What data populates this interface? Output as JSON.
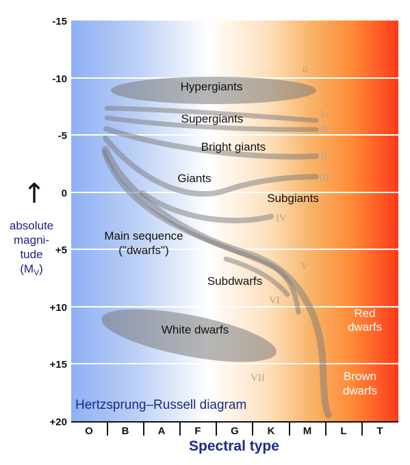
{
  "title": "Hertzsprung–Russell diagram",
  "y_axis": {
    "label_lines": [
      "absolute",
      "magni-",
      "tude"
    ],
    "label_symbol": "(M",
    "label_subscript": "V",
    "label_close": ")",
    "arrow": "↑",
    "ticks": [
      "-15",
      "-10",
      "-5",
      "0",
      "+5",
      "+10",
      "+15",
      "+20"
    ]
  },
  "x_axis": {
    "label": "Spectral type",
    "ticks": [
      "O",
      "B",
      "A",
      "F",
      "G",
      "K",
      "M",
      "L",
      "T"
    ]
  },
  "regions": {
    "hypergiants": "Hypergiants",
    "supergiants": "Supergiants",
    "bright_giants": "Bright giants",
    "giants": "Giants",
    "subgiants": "Subgiants",
    "main_sequence_line1": "Main sequence",
    "main_sequence_line2": "(\"dwarfs\")",
    "subdwarfs": "Subdwarfs",
    "white_dwarfs": "White dwarfs",
    "red_dwarfs_line1": "Red",
    "red_dwarfs_line2": "dwarfs",
    "brown_dwarfs_line1": "Brown",
    "brown_dwarfs_line2": "dwarfs"
  },
  "luminosity_classes": {
    "c0": "0",
    "ia": "Ia",
    "ib": "Ib",
    "ii": "II",
    "iii": "III",
    "iv": "IV",
    "v": "V",
    "vi": "VI",
    "vii": "VII"
  },
  "colors": {
    "hot": "#8fb0f4",
    "neutral": "#ffffff",
    "warm": "#f5b36a",
    "cool": "#ff4a1e",
    "band": "#7a7a7a",
    "axis_label": "#1c2a86"
  }
}
